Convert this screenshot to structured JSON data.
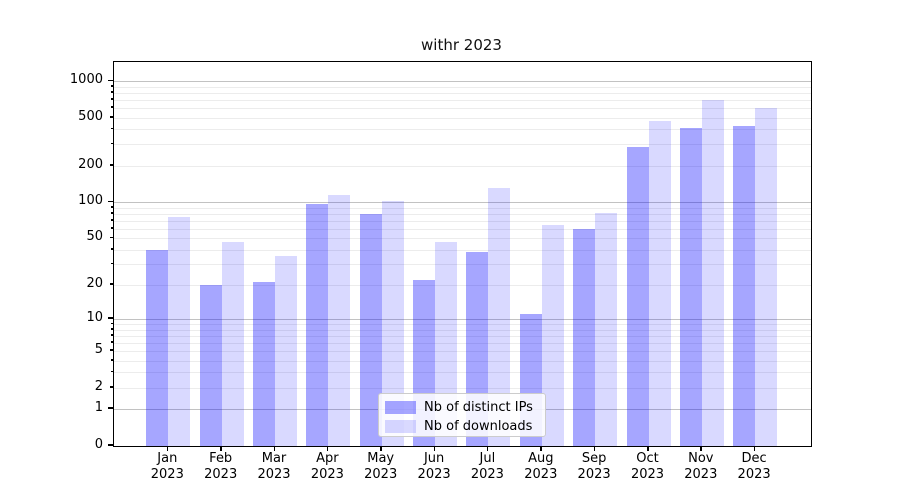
{
  "title": "withr 2023",
  "colors": {
    "bar_distinct_ips": "rgba(0,0,255,0.35)",
    "bar_distinct_ips_hex": "#a6a6ff",
    "bar_downloads": "rgba(0,0,255,0.15)",
    "bar_downloads_hex": "#d9d9ff",
    "grid_major": "#c2c2c2",
    "grid_minor": "#ececec",
    "spine": "#000000"
  },
  "chart_data": {
    "type": "bar",
    "title": "withr 2023",
    "xlabel": "",
    "ylabel": "",
    "yscale": "log1p",
    "ylim": [
      0,
      1400
    ],
    "grid": "horizontal major+minor, drawn under translucent bars",
    "legend_position": "lower center inside plot",
    "categories": [
      "Jan",
      "Feb",
      "Mar",
      "Apr",
      "May",
      "Jun",
      "Jul",
      "Aug",
      "Sep",
      "Oct",
      "Nov",
      "Dec"
    ],
    "year": "2023",
    "series": [
      {
        "name": "Nb of distinct IPs",
        "color": "rgba(0,0,255,0.35)",
        "values": [
          40,
          20,
          21,
          96,
          80,
          22,
          38,
          11,
          60,
          285,
          410,
          428
        ]
      },
      {
        "name": "Nb of downloads",
        "color": "rgba(0,0,255,0.15)",
        "values": [
          75,
          46,
          35,
          115,
          102,
          46,
          131,
          64,
          81,
          467,
          693,
          601
        ]
      }
    ],
    "y_ticks": [
      {
        "v": 0,
        "label": "0",
        "major": true
      },
      {
        "v": 1,
        "label": "1",
        "major": true
      },
      {
        "v": 2,
        "label": "2",
        "major": false
      },
      {
        "v": 5,
        "label": "5",
        "major": false
      },
      {
        "v": 10,
        "label": "10",
        "major": true
      },
      {
        "v": 20,
        "label": "20",
        "major": false
      },
      {
        "v": 50,
        "label": "50",
        "major": false
      },
      {
        "v": 100,
        "label": "100",
        "major": true
      },
      {
        "v": 200,
        "label": "200",
        "major": false
      },
      {
        "v": 500,
        "label": "500",
        "major": false
      },
      {
        "v": 1000,
        "label": "1000",
        "major": true
      }
    ]
  }
}
